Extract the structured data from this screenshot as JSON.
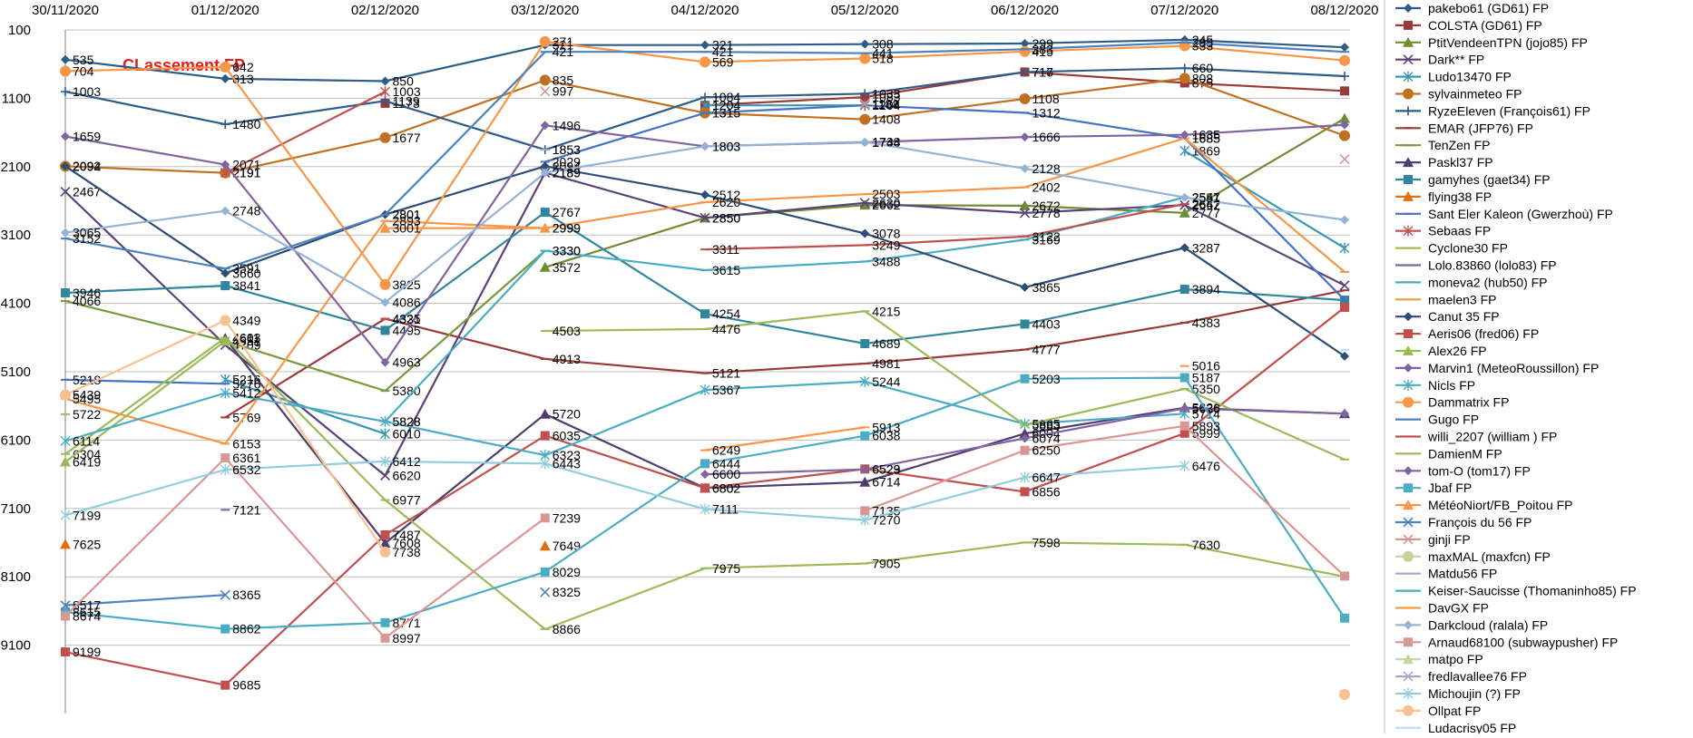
{
  "chart_data": {
    "type": "line",
    "title": "CLassement FP",
    "title_color": "#e0201b",
    "x": [
      "30/11/2020",
      "01/12/2020",
      "02/12/2020",
      "03/12/2020",
      "04/12/2020",
      "05/12/2020",
      "06/12/2020",
      "07/12/2020",
      "08/12/2020"
    ],
    "yticks": [
      100,
      1100,
      2100,
      3100,
      4100,
      5100,
      6100,
      7100,
      8100,
      9100
    ],
    "ylim": [
      100,
      10100
    ],
    "y_inverted": true,
    "grid": true,
    "legend_position": "right",
    "series": [
      {
        "name": "pakebo61 (GD61) FP",
        "color": "#2e5c8a",
        "marker": "diamond",
        "values": [
          535,
          813,
          850,
          321,
          321,
          308,
          299,
          245,
          354
        ]
      },
      {
        "name": "COLSTA (GD61) FP",
        "color": "#9a3a38",
        "marker": "square",
        "values": [
          null,
          null,
          1173,
          null,
          1204,
          1083,
          716,
          875,
          993
        ]
      },
      {
        "name": "PtitVendeenTPN (jojo85) FP",
        "color": "#6f8b33",
        "marker": "triangle",
        "values": [
          null,
          null,
          null,
          3572,
          2850,
          2662,
          2672,
          2777,
          1394
        ]
      },
      {
        "name": "Dark** FP",
        "color": "#5a4278",
        "marker": "x",
        "values": [
          2467,
          4709,
          6620,
          2189,
          2850,
          2630,
          2778,
          2662,
          3838
        ]
      },
      {
        "name": "Ludo13470 FP",
        "color": "#3a98b3",
        "marker": "star",
        "values": [
          null,
          5216,
          6010,
          null,
          1204,
          1204,
          null,
          1869,
          3291
        ]
      },
      {
        "name": "sylvainmeteo FP",
        "color": "#c0711f",
        "marker": "circle",
        "values": [
          2094,
          2191,
          1677,
          835,
          1315,
          1408,
          1108,
          808,
          1647
        ]
      },
      {
        "name": "RyzeEleven (François61) FP",
        "color": "#2e5c8a",
        "marker": "plus",
        "values": [
          1003,
          1480,
          1139,
          1853,
          1084,
          1033,
          717,
          660,
          777
        ]
      },
      {
        "name": "EMAR (JFP76) FP",
        "color": "#9a3a38",
        "marker": "dash",
        "values": [
          null,
          5769,
          4325,
          4913,
          5121,
          4981,
          4777,
          4383,
          3909
        ]
      },
      {
        "name": "TenZen FP",
        "color": "#7a9a3e",
        "marker": "dash",
        "values": [
          4066,
          4651,
          5380,
          3330,
          null,
          null,
          null,
          null,
          null
        ]
      },
      {
        "name": "Paskl37 FP",
        "color": "#4e3d6e",
        "marker": "triangle",
        "values": [
          null,
          4611,
          7608,
          5720,
          6802,
          6714,
          6004,
          5626,
          5714
        ]
      },
      {
        "name": "gamyhes (gaet34) FP",
        "color": "#31859c",
        "marker": "square",
        "values": [
          3946,
          3841,
          4495,
          2767,
          4254,
          4689,
          4403,
          3894,
          4053
        ]
      },
      {
        "name": "flying38 FP",
        "color": "#e46c0a",
        "marker": "triangle",
        "values": [
          7625,
          null,
          null,
          7649,
          null,
          null,
          null,
          null,
          null
        ]
      },
      {
        "name": "Sant Eler Kaleon (Gwerzhoù) FP",
        "color": "#4472c4",
        "marker": "dash",
        "values": [
          5218,
          5276,
          null,
          2029,
          1315,
          1204,
          1312,
          1685,
          4051
        ]
      },
      {
        "name": "Sebaas FP",
        "color": "#c0504d",
        "marker": "star",
        "values": [
          null,
          2191,
          1003,
          null,
          null,
          1188,
          null,
          null,
          null
        ]
      },
      {
        "name": "Cyclone30 FP",
        "color": "#9bbb59",
        "marker": "dash",
        "values": [
          6304,
          4603,
          6977,
          8866,
          7975,
          7905,
          7598,
          7630,
          8099
        ]
      },
      {
        "name": "Lolo.83860 (lolo83) FP",
        "color": "#8064a2",
        "marker": "dash",
        "values": [
          null,
          7121,
          null,
          null,
          null,
          null,
          null,
          null,
          null
        ]
      },
      {
        "name": "moneva2 (hub50) FP",
        "color": "#4bacc6",
        "marker": "dash",
        "values": [
          null,
          null,
          5828,
          3330,
          3615,
          3488,
          3169,
          2547,
          null
        ]
      },
      {
        "name": "maelen3 FP",
        "color": "#f79646",
        "marker": "dash",
        "values": [
          5495,
          6153,
          2893,
          2999,
          2620,
          2503,
          2402,
          1685,
          3640
        ]
      },
      {
        "name": "Canut 35 FP",
        "color": "#2c4d75",
        "marker": "diamond",
        "values": [
          2092,
          3660,
          2801,
          2094,
          2512,
          3078,
          3865,
          3287,
          4873
        ]
      },
      {
        "name": "Aeris06 (fred06) FP",
        "color": "#c0504d",
        "marker": "square",
        "values": [
          9199,
          9685,
          7487,
          6035,
          6802,
          6523,
          6856,
          5999,
          4159
        ]
      },
      {
        "name": "Alex26 FP",
        "color": "#9bbb59",
        "marker": "triangle",
        "values": [
          6419,
          4651,
          null,
          null,
          null,
          null,
          null,
          null,
          null
        ]
      },
      {
        "name": "Marvin1 (MeteoRoussillon) FP",
        "color": "#8064a2",
        "marker": "diamond",
        "values": [
          1659,
          2071,
          4963,
          1496,
          1803,
          1744,
          1666,
          1635,
          1487
        ]
      },
      {
        "name": "Nicls FP",
        "color": "#4bacc6",
        "marker": "star",
        "values": [
          6114,
          5412,
          5828,
          6323,
          5367,
          5244,
          5865,
          5714,
          null
        ]
      },
      {
        "name": "Dammatrix FP",
        "color": "#f79646",
        "marker": "circle",
        "values": [
          704,
          642,
          3825,
          271,
          569,
          518,
          415,
          333,
          547
        ]
      },
      {
        "name": "Gugo FP",
        "color": "#4f81bd",
        "marker": "dash",
        "values": [
          3152,
          3591,
          2801,
          421,
          421,
          441,
          383,
          285,
          421
        ]
      },
      {
        "name": "willi_2207 (william ) FP",
        "color": "#c0504d",
        "marker": "dash",
        "values": [
          null,
          null,
          4331,
          null,
          3311,
          3249,
          3122,
          2647,
          null
        ]
      },
      {
        "name": "DamienM FP",
        "color": "#9bbb59",
        "marker": "dash",
        "values": [
          5722,
          null,
          null,
          4503,
          4476,
          4215,
          5883,
          5350,
          6383
        ]
      },
      {
        "name": "tom-O (tom17) FP",
        "color": "#8064a2",
        "marker": "diamond",
        "values": [
          null,
          null,
          null,
          null,
          6600,
          6529,
          6074,
          5636,
          5713
        ]
      },
      {
        "name": "Jbaf FP",
        "color": "#4bacc6",
        "marker": "square",
        "values": [
          8615,
          8862,
          8771,
          8029,
          6444,
          6038,
          5203,
          5187,
          8704
        ]
      },
      {
        "name": "MétéoNiort/FB_Poitou FP",
        "color": "#f79646",
        "marker": "triangle",
        "values": [
          null,
          null,
          3001,
          2999,
          null,
          null,
          null,
          null,
          null
        ]
      },
      {
        "name": "François du 56 FP",
        "color": "#4f81bd",
        "marker": "x",
        "values": [
          8517,
          8365,
          null,
          8325,
          null,
          null,
          null,
          null,
          null
        ]
      },
      {
        "name": "ginji FP",
        "color": "#d99694",
        "marker": "x",
        "values": [
          null,
          null,
          null,
          997,
          null,
          1181,
          null,
          null,
          1990
        ]
      },
      {
        "name": "maxMAL (maxfcn) FP",
        "color": "#c3d69b",
        "marker": "circle",
        "values": [
          null,
          null,
          null,
          null,
          null,
          null,
          null,
          null,
          null
        ]
      },
      {
        "name": "Matdu56 FP",
        "color": "#b3a2c7",
        "marker": "dash",
        "values": [
          null,
          null,
          null,
          1853,
          null,
          null,
          null,
          null,
          null
        ]
      },
      {
        "name": "Keiser-Saucisse (Thomaninho85) FP",
        "color": "#4bacc6",
        "marker": "dash",
        "values": [
          null,
          null,
          null,
          null,
          null,
          null,
          null,
          null,
          null
        ]
      },
      {
        "name": "DavGX FP",
        "color": "#f79646",
        "marker": "dash",
        "values": [
          null,
          null,
          null,
          null,
          6249,
          5913,
          null,
          5016,
          null
        ]
      },
      {
        "name": "Darkcloud (ralala) FP",
        "color": "#95b3d7",
        "marker": "diamond",
        "values": [
          3065,
          2748,
          4086,
          2189,
          1803,
          1738,
          2128,
          2551,
          2878
        ]
      },
      {
        "name": "Arnaud68100 (subwaypusher) FP",
        "color": "#d99694",
        "marker": "square",
        "values": [
          8674,
          6361,
          8997,
          7239,
          null,
          7135,
          6250,
          5893,
          8089
        ]
      },
      {
        "name": "matpo FP",
        "color": "#c3d69b",
        "marker": "triangle",
        "values": [
          null,
          null,
          null,
          null,
          null,
          null,
          null,
          null,
          null
        ]
      },
      {
        "name": "fredlavallee76 FP",
        "color": "#b3a2c7",
        "marker": "x",
        "values": [
          null,
          null,
          null,
          null,
          null,
          null,
          null,
          null,
          null
        ]
      },
      {
        "name": "Michoujin (?) FP",
        "color": "#93cddd",
        "marker": "star",
        "values": [
          7199,
          6532,
          6412,
          6443,
          7111,
          7270,
          6647,
          6476,
          null
        ]
      },
      {
        "name": "Ollpat FP",
        "color": "#fac08f",
        "marker": "circle",
        "values": [
          5439,
          4349,
          7738,
          null,
          null,
          null,
          null,
          null,
          9820
        ]
      },
      {
        "name": "Ludacrisy05 FP",
        "color": "#c5d9f1",
        "marker": "dash",
        "values": [
          null,
          null,
          null,
          null,
          null,
          null,
          null,
          null,
          4780
        ]
      }
    ]
  }
}
